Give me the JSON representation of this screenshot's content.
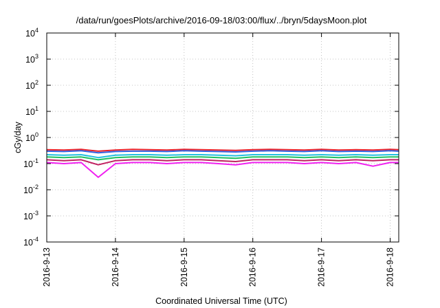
{
  "chart_data": {
    "type": "line",
    "title": "/data/run/goesPlots/archive/2016-09-18/03:00/flux/../bryn/5daysMoon.plot",
    "xlabel": "Coordinated Universal Time (UTC)",
    "ylabel": "cGy/day",
    "yscale": "log",
    "ylim": [
      0.0001,
      10000
    ],
    "y_ticks": [
      {
        "base": "10",
        "exp": "-4",
        "value": 0.0001
      },
      {
        "base": "10",
        "exp": "-3",
        "value": 0.001
      },
      {
        "base": "10",
        "exp": "-2",
        "value": 0.01
      },
      {
        "base": "10",
        "exp": "-1",
        "value": 0.1
      },
      {
        "base": "10",
        "exp": "0",
        "value": 1
      },
      {
        "base": "10",
        "exp": "1",
        "value": 10
      },
      {
        "base": "10",
        "exp": "2",
        "value": 100
      },
      {
        "base": "10",
        "exp": "3",
        "value": 1000
      },
      {
        "base": "10",
        "exp": "4",
        "value": 10000
      }
    ],
    "x_ticks": [
      "2016-9-13",
      "2016-9-14",
      "2016-9-15",
      "2016-9-16",
      "2016-9-17",
      "2016-9-18"
    ],
    "xlim": [
      "2016-09-13 00:00",
      "2016-09-18 03:00"
    ],
    "grid": true,
    "x": [
      "2016-09-13 00:00",
      "2016-09-13 06:00",
      "2016-09-13 12:00",
      "2016-09-13 18:00",
      "2016-09-14 00:00",
      "2016-09-14 06:00",
      "2016-09-14 12:00",
      "2016-09-14 18:00",
      "2016-09-15 00:00",
      "2016-09-15 06:00",
      "2016-09-15 12:00",
      "2016-09-15 18:00",
      "2016-09-16 00:00",
      "2016-09-16 06:00",
      "2016-09-16 12:00",
      "2016-09-16 18:00",
      "2016-09-17 00:00",
      "2016-09-17 06:00",
      "2016-09-17 12:00",
      "2016-09-17 18:00",
      "2016-09-18 00:00",
      "2016-09-18 03:00"
    ],
    "series": [
      {
        "color": "#e8202a",
        "values": [
          0.34,
          0.33,
          0.35,
          0.3,
          0.33,
          0.35,
          0.34,
          0.33,
          0.35,
          0.34,
          0.33,
          0.32,
          0.34,
          0.35,
          0.34,
          0.33,
          0.35,
          0.33,
          0.34,
          0.33,
          0.35,
          0.34
        ]
      },
      {
        "color": "#3060e0",
        "values": [
          0.3,
          0.29,
          0.31,
          0.26,
          0.29,
          0.3,
          0.3,
          0.29,
          0.31,
          0.3,
          0.29,
          0.28,
          0.3,
          0.31,
          0.3,
          0.29,
          0.31,
          0.29,
          0.3,
          0.29,
          0.31,
          0.3
        ]
      },
      {
        "color": "#20c0e0",
        "values": [
          0.22,
          0.21,
          0.22,
          0.17,
          0.21,
          0.22,
          0.22,
          0.21,
          0.22,
          0.22,
          0.21,
          0.2,
          0.22,
          0.22,
          0.22,
          0.21,
          0.22,
          0.21,
          0.22,
          0.21,
          0.22,
          0.22
        ]
      },
      {
        "color": "#20c060",
        "values": [
          0.18,
          0.17,
          0.18,
          0.14,
          0.17,
          0.18,
          0.18,
          0.17,
          0.18,
          0.18,
          0.17,
          0.16,
          0.18,
          0.18,
          0.18,
          0.17,
          0.18,
          0.17,
          0.18,
          0.17,
          0.18,
          0.18
        ]
      },
      {
        "color": "#c02060",
        "values": [
          0.14,
          0.13,
          0.14,
          0.09,
          0.13,
          0.14,
          0.14,
          0.13,
          0.14,
          0.14,
          0.13,
          0.12,
          0.14,
          0.14,
          0.14,
          0.13,
          0.14,
          0.13,
          0.14,
          0.13,
          0.14,
          0.14
        ]
      },
      {
        "color": "#f020f0",
        "values": [
          0.11,
          0.1,
          0.11,
          0.03,
          0.1,
          0.11,
          0.11,
          0.1,
          0.11,
          0.11,
          0.1,
          0.09,
          0.11,
          0.11,
          0.11,
          0.1,
          0.11,
          0.1,
          0.11,
          0.08,
          0.11,
          0.11
        ]
      }
    ]
  }
}
